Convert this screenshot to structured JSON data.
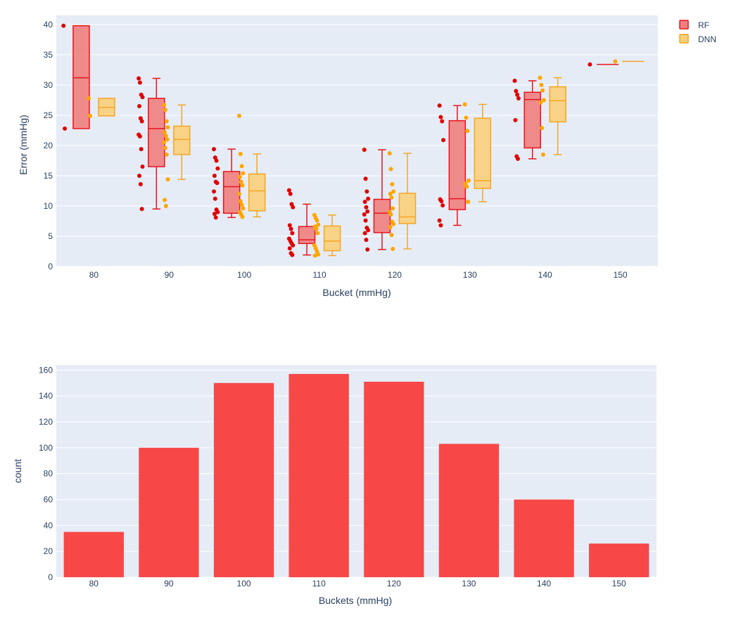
{
  "colors": {
    "plot_bg": "#e5ecf6",
    "grid": "#ffffff",
    "text": "#2a3f5f",
    "rf_line": "#e8141c",
    "rf_fill": "#f08080",
    "rf_point": "#e00000",
    "dnn_line": "#f5a623",
    "dnn_fill": "#f9cf7a",
    "dnn_point": "#ffa500",
    "bar": "#f74747"
  },
  "chart_data": [
    {
      "type": "box",
      "xlabel": "Bucket (mmHg)",
      "ylabel": "Error (mmHg)",
      "ylim": [
        0,
        41.5
      ],
      "yticks": [
        0,
        5,
        10,
        15,
        20,
        25,
        30,
        35,
        40
      ],
      "categories": [
        "80",
        "90",
        "100",
        "110",
        "120",
        "130",
        "140",
        "150"
      ],
      "legend": {
        "placement": "top-right",
        "entries": [
          "RF",
          "DNN"
        ]
      },
      "grid": true,
      "series": [
        {
          "name": "RF",
          "boxes": [
            {
              "min": 22.8,
              "q1": 22.8,
              "median": 31.2,
              "q3": 39.8,
              "max": 39.8,
              "points": [
                39.8,
                22.8
              ]
            },
            {
              "min": 9.5,
              "q1": 16.5,
              "median": 22.8,
              "q3": 27.8,
              "max": 31.1,
              "points": [
                31.1,
                30.4,
                28.4,
                28.0,
                26.5,
                24.5,
                24.0,
                21.8,
                21.5,
                19.4,
                16.5,
                15.0,
                13.6,
                9.5
              ]
            },
            {
              "min": 8.1,
              "q1": 8.8,
              "median": 13.2,
              "q3": 15.7,
              "max": 19.4,
              "points": [
                19.4,
                18.0,
                17.5,
                16.2,
                15.0,
                14.0,
                13.8,
                12.4,
                11.2,
                9.4,
                9.0,
                8.7,
                8.1
              ]
            },
            {
              "min": 1.9,
              "q1": 3.8,
              "median": 4.4,
              "q3": 6.6,
              "max": 10.3,
              "points": [
                12.6,
                12.0,
                10.3,
                9.8,
                6.8,
                6.2,
                5.5,
                4.6,
                4.2,
                3.8,
                3.5,
                3.0,
                2.2,
                1.9
              ]
            },
            {
              "min": 2.8,
              "q1": 5.6,
              "median": 8.8,
              "q3": 11.1,
              "max": 19.3,
              "points": [
                19.3,
                14.5,
                12.4,
                11.2,
                10.7,
                9.8,
                9.1,
                8.6,
                7.6,
                6.4,
                6.0,
                5.5,
                4.4,
                2.8
              ]
            },
            {
              "min": 6.8,
              "q1": 9.4,
              "median": 11.2,
              "q3": 24.1,
              "max": 26.6,
              "points": [
                26.6,
                24.7,
                24.0,
                20.9,
                11.1,
                10.8,
                10.1,
                7.6,
                6.8
              ]
            },
            {
              "min": 17.8,
              "q1": 19.6,
              "median": 27.6,
              "q3": 28.8,
              "max": 30.7,
              "points": [
                30.7,
                29.0,
                28.4,
                27.8,
                24.2,
                18.2,
                17.8
              ]
            },
            {
              "min": 33.4,
              "q1": 33.4,
              "median": 33.4,
              "q3": 33.4,
              "max": 33.4,
              "points": [
                33.4
              ]
            }
          ]
        },
        {
          "name": "DNN",
          "boxes": [
            {
              "min": 24.9,
              "q1": 24.9,
              "median": 26.3,
              "q3": 27.8,
              "max": 27.8,
              "points": [
                27.8,
                24.9
              ]
            },
            {
              "min": 14.4,
              "q1": 18.5,
              "median": 21.0,
              "q3": 23.2,
              "max": 26.7,
              "points": [
                26.7,
                25.9,
                24.0,
                23.0,
                22.2,
                21.6,
                21.0,
                20.5,
                19.6,
                18.5,
                14.4,
                11.0,
                10.0
              ]
            },
            {
              "min": 8.2,
              "q1": 9.2,
              "median": 12.5,
              "q3": 15.3,
              "max": 18.6,
              "points": [
                24.9,
                18.6,
                16.6,
                15.4,
                14.8,
                14.0,
                13.4,
                12.0,
                10.8,
                10.2,
                9.6,
                9.0,
                8.6,
                8.2
              ]
            },
            {
              "min": 1.8,
              "q1": 2.6,
              "median": 4.2,
              "q3": 6.7,
              "max": 8.5,
              "points": [
                8.5,
                8.0,
                7.6,
                6.9,
                6.6,
                6.2,
                5.5,
                3.5,
                3.0,
                2.5,
                2.0,
                1.8
              ]
            },
            {
              "min": 2.9,
              "q1": 7.1,
              "median": 8.2,
              "q3": 12.1,
              "max": 18.7,
              "points": [
                18.7,
                16.1,
                13.6,
                12.4,
                12.0,
                11.4,
                9.6,
                9.0,
                8.6,
                7.4,
                7.0,
                6.5,
                5.2,
                2.9
              ]
            },
            {
              "min": 10.7,
              "q1": 12.9,
              "median": 14.2,
              "q3": 24.5,
              "max": 26.8,
              "points": [
                26.8,
                24.6,
                22.4,
                14.2,
                13.7,
                13.2,
                10.7
              ]
            },
            {
              "min": 18.5,
              "q1": 23.9,
              "median": 27.4,
              "q3": 29.7,
              "max": 31.2,
              "points": [
                31.2,
                30.0,
                29.1,
                27.5,
                27.1,
                22.9,
                18.5
              ]
            },
            {
              "min": 33.9,
              "q1": 33.9,
              "median": 33.9,
              "q3": 33.9,
              "max": 33.9,
              "points": [
                33.9
              ]
            }
          ]
        }
      ]
    },
    {
      "type": "bar",
      "xlabel": "Buckets (mmHg)",
      "ylabel": "count",
      "ylim": [
        0,
        164
      ],
      "yticks": [
        0,
        20,
        40,
        60,
        80,
        100,
        120,
        140,
        160
      ],
      "categories": [
        "80",
        "90",
        "100",
        "110",
        "120",
        "130",
        "140",
        "150"
      ],
      "values": [
        35,
        100,
        150,
        157,
        151,
        103,
        60,
        26
      ],
      "grid": true
    }
  ]
}
